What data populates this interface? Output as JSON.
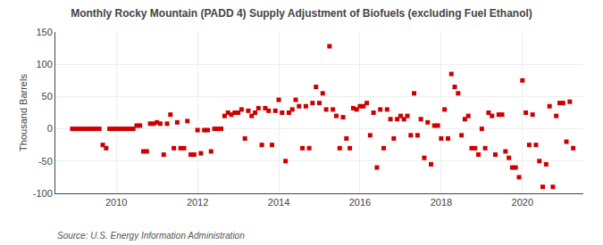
{
  "chart_data": {
    "type": "scatter",
    "title": "Monthly Rocky Mountain (PADD 4) Supply Adjustment of Biofuels (excluding Fuel Ethanol)",
    "ylabel": "Thousand Barrels",
    "source": "Source: U.S. Energy Information Administration",
    "color": "#cc0000",
    "marker": "square",
    "grid": true,
    "xlim": [
      2008.5,
      2021.5
    ],
    "xticks": [
      2010,
      2012,
      2014,
      2016,
      2018,
      2020
    ],
    "ylim": [
      -100,
      150
    ],
    "yticks": [
      -100,
      -50,
      0,
      50,
      100,
      150
    ],
    "x": [
      2008.917,
      2009.0,
      2009.083,
      2009.167,
      2009.25,
      2009.333,
      2009.417,
      2009.5,
      2009.583,
      2009.667,
      2009.75,
      2009.833,
      2009.917,
      2010.0,
      2010.083,
      2010.167,
      2010.25,
      2010.333,
      2010.417,
      2010.5,
      2010.583,
      2010.667,
      2010.75,
      2010.833,
      2010.917,
      2011.0,
      2011.083,
      2011.167,
      2011.25,
      2011.333,
      2011.417,
      2011.5,
      2011.583,
      2011.667,
      2011.75,
      2011.833,
      2011.917,
      2012.0,
      2012.083,
      2012.167,
      2012.25,
      2012.333,
      2012.417,
      2012.5,
      2012.583,
      2012.667,
      2012.75,
      2012.833,
      2012.917,
      2013.0,
      2013.083,
      2013.167,
      2013.25,
      2013.333,
      2013.417,
      2013.5,
      2013.583,
      2013.667,
      2013.75,
      2013.833,
      2013.917,
      2014.0,
      2014.083,
      2014.167,
      2014.25,
      2014.333,
      2014.417,
      2014.5,
      2014.583,
      2014.667,
      2014.75,
      2014.833,
      2014.917,
      2015.0,
      2015.083,
      2015.167,
      2015.25,
      2015.333,
      2015.417,
      2015.5,
      2015.583,
      2015.667,
      2015.75,
      2015.833,
      2015.917,
      2016.0,
      2016.083,
      2016.167,
      2016.25,
      2016.333,
      2016.417,
      2016.5,
      2016.583,
      2016.667,
      2016.75,
      2016.833,
      2016.917,
      2017.0,
      2017.083,
      2017.167,
      2017.25,
      2017.333,
      2017.417,
      2017.5,
      2017.583,
      2017.667,
      2017.75,
      2017.833,
      2017.917,
      2018.0,
      2018.083,
      2018.167,
      2018.25,
      2018.333,
      2018.417,
      2018.5,
      2018.583,
      2018.667,
      2018.75,
      2018.833,
      2018.917,
      2019.0,
      2019.083,
      2019.167,
      2019.25,
      2019.333,
      2019.417,
      2019.5,
      2019.583,
      2019.667,
      2019.75,
      2019.833,
      2019.917,
      2020.0,
      2020.083,
      2020.167,
      2020.25,
      2020.333,
      2020.417,
      2020.5,
      2020.583,
      2020.667,
      2020.75,
      2020.833,
      2020.917,
      2021.0,
      2021.083,
      2021.167,
      2021.25
    ],
    "values": [
      0,
      0,
      0,
      0,
      0,
      0,
      0,
      0,
      0,
      -25,
      -30,
      0,
      0,
      0,
      0,
      0,
      0,
      0,
      0,
      5,
      5,
      -35,
      -35,
      8,
      8,
      10,
      8,
      -40,
      8,
      22,
      -30,
      10,
      -30,
      -30,
      12,
      -40,
      -40,
      -2,
      -38,
      -2,
      -2,
      -35,
      0,
      0,
      0,
      20,
      25,
      22,
      25,
      25,
      30,
      -15,
      28,
      20,
      25,
      32,
      -25,
      32,
      28,
      -25,
      28,
      45,
      25,
      -50,
      25,
      30,
      45,
      35,
      -30,
      35,
      -30,
      40,
      65,
      40,
      55,
      30,
      128,
      30,
      20,
      -30,
      18,
      -15,
      -30,
      32,
      30,
      35,
      35,
      40,
      -10,
      25,
      -60,
      30,
      -30,
      30,
      15,
      -15,
      15,
      20,
      15,
      20,
      -10,
      55,
      -10,
      15,
      -45,
      10,
      -55,
      5,
      5,
      -15,
      30,
      -15,
      85,
      65,
      55,
      -10,
      15,
      20,
      -30,
      -30,
      -40,
      0,
      -30,
      25,
      20,
      -40,
      22,
      22,
      -35,
      -45,
      -60,
      -60,
      -75,
      75,
      25,
      -25,
      22,
      -25,
      -50,
      -90,
      -55,
      35,
      -90,
      20,
      40,
      40,
      -20,
      42,
      -30
    ]
  }
}
